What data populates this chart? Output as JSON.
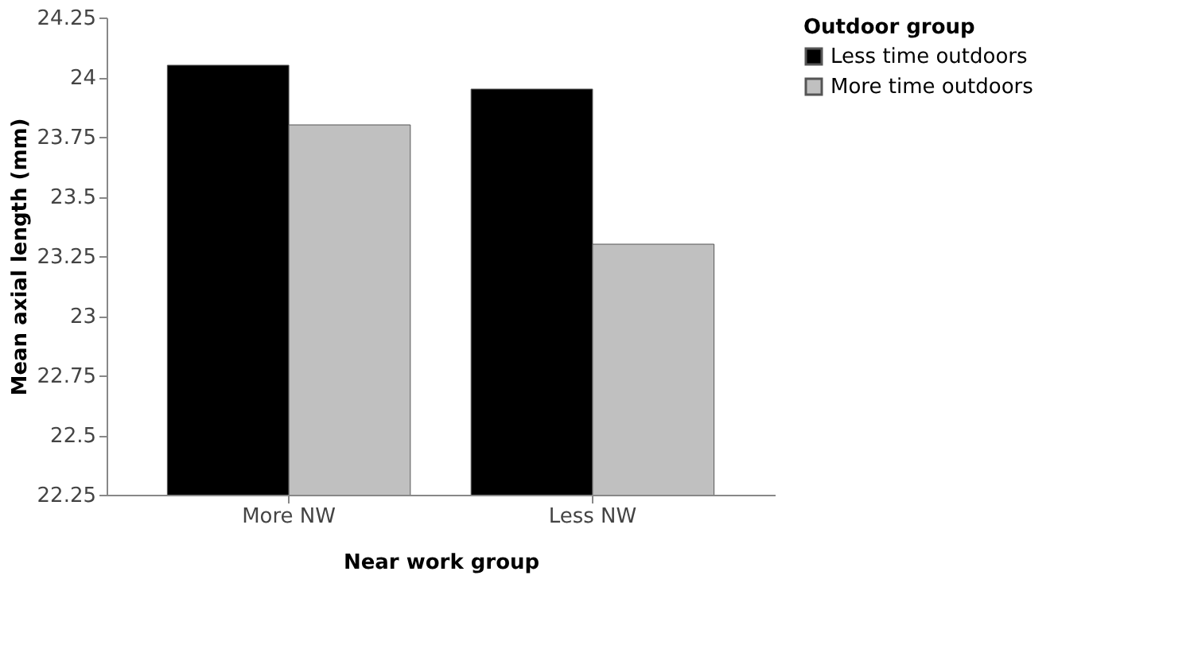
{
  "chart_data": {
    "type": "bar",
    "xlabel": "Near work group",
    "ylabel": "Mean axial length (mm)",
    "legend_title": "Outdoor group",
    "categories": [
      "More NW",
      "Less NW"
    ],
    "series": [
      {
        "name": "Less time outdoors",
        "color": "#000000",
        "values": [
          24.05,
          23.95
        ]
      },
      {
        "name": "More time outdoors",
        "color": "#c0c0c0",
        "values": [
          23.8,
          23.3
        ]
      }
    ],
    "ylim": [
      22.25,
      24.25
    ],
    "yticks": [
      22.25,
      22.5,
      22.75,
      23,
      23.25,
      23.5,
      23.75,
      24,
      24.25
    ],
    "grid": false,
    "legend": "right"
  }
}
